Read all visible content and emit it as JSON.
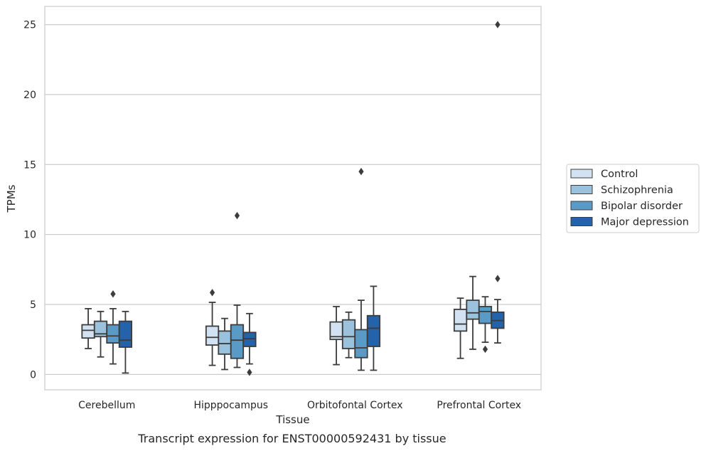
{
  "caption": "Transcript expression for ENST00000592431 by tissue",
  "chart_data": {
    "type": "box",
    "xlabel": "Tissue",
    "ylabel": "TPMs",
    "ylim": [
      -1.1,
      26.3
    ],
    "yticks": [
      0,
      5,
      10,
      15,
      20,
      25
    ],
    "grid": "horizontal",
    "legend_position": "right",
    "categories": [
      "Cerebellum",
      "Hipppocampus",
      "Orbitofontal Cortex",
      "Prefrontal Cortex"
    ],
    "series": [
      {
        "name": "Control",
        "color": "#d2e2f2",
        "boxes": [
          {
            "whisker_low": 1.85,
            "q1": 2.6,
            "median": 3.15,
            "q3": 3.55,
            "whisker_high": 4.7,
            "outliers": []
          },
          {
            "whisker_low": 0.65,
            "q1": 2.1,
            "median": 2.65,
            "q3": 3.45,
            "whisker_high": 5.15,
            "outliers": [
              5.85
            ]
          },
          {
            "whisker_low": 0.7,
            "q1": 2.5,
            "median": 2.7,
            "q3": 3.75,
            "whisker_high": 4.85,
            "outliers": []
          },
          {
            "whisker_low": 1.15,
            "q1": 3.1,
            "median": 3.6,
            "q3": 4.65,
            "whisker_high": 5.45,
            "outliers": []
          }
        ]
      },
      {
        "name": "Schizophrenia",
        "color": "#9ac2dc",
        "boxes": [
          {
            "whisker_low": 1.25,
            "q1": 2.7,
            "median": 2.9,
            "q3": 3.8,
            "whisker_high": 4.5,
            "outliers": []
          },
          {
            "whisker_low": 0.35,
            "q1": 1.45,
            "median": 2.2,
            "q3": 3.1,
            "whisker_high": 4.0,
            "outliers": []
          },
          {
            "whisker_low": 1.2,
            "q1": 1.85,
            "median": 2.7,
            "q3": 3.9,
            "whisker_high": 4.45,
            "outliers": []
          },
          {
            "whisker_low": 1.8,
            "q1": 3.95,
            "median": 4.4,
            "q3": 5.3,
            "whisker_high": 7.0,
            "outliers": []
          }
        ]
      },
      {
        "name": "Bipolar disorder",
        "color": "#5a9ac7",
        "boxes": [
          {
            "whisker_low": 0.75,
            "q1": 2.25,
            "median": 2.75,
            "q3": 3.55,
            "whisker_high": 4.7,
            "outliers": [
              5.75
            ]
          },
          {
            "whisker_low": 0.5,
            "q1": 1.15,
            "median": 2.45,
            "q3": 3.55,
            "whisker_high": 4.95,
            "outliers": [
              11.35
            ]
          },
          {
            "whisker_low": 0.3,
            "q1": 1.2,
            "median": 1.9,
            "q3": 3.2,
            "whisker_high": 5.3,
            "outliers": [
              14.5
            ]
          },
          {
            "whisker_low": 2.3,
            "q1": 3.65,
            "median": 4.5,
            "q3": 4.85,
            "whisker_high": 5.55,
            "outliers": [
              1.8
            ]
          }
        ]
      },
      {
        "name": "Major depression",
        "color": "#2463a9",
        "boxes": [
          {
            "whisker_low": 0.1,
            "q1": 1.95,
            "median": 2.45,
            "q3": 3.8,
            "whisker_high": 4.5,
            "outliers": []
          },
          {
            "whisker_low": 0.75,
            "q1": 2.0,
            "median": 2.55,
            "q3": 3.0,
            "whisker_high": 4.35,
            "outliers": [
              0.15
            ]
          },
          {
            "whisker_low": 0.3,
            "q1": 2.0,
            "median": 3.3,
            "q3": 4.2,
            "whisker_high": 6.3,
            "outliers": []
          },
          {
            "whisker_low": 2.25,
            "q1": 3.3,
            "median": 3.85,
            "q3": 4.45,
            "whisker_high": 5.35,
            "outliers": [
              6.85,
              25.0
            ]
          }
        ]
      }
    ]
  }
}
